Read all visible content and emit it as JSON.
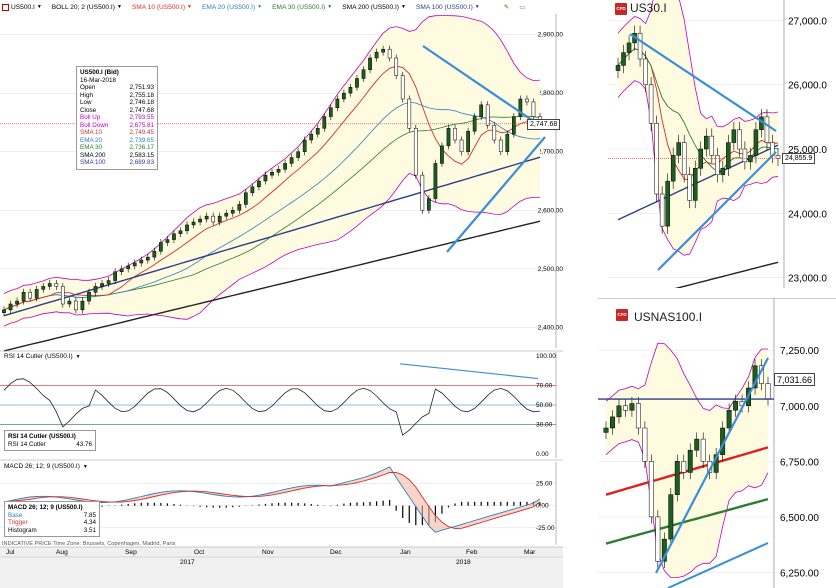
{
  "main": {
    "toolbar": {
      "symbol": "US500.I",
      "boll": "BOLL 20; 2 (US500.I)",
      "sma10": "SMA 10 (US500.I)",
      "ema20": "EMA 20 (US500.I)",
      "ema30": "EMA 30 (US500.I)",
      "sma200": "SMA 200 (US500.I)",
      "sma100": "SMA 100 (US500.I)"
    },
    "price_badge": "2,747.68",
    "infobox": {
      "title": "US500.I (Bid)",
      "date": "16-Mar-2018",
      "rows": [
        {
          "label": "Open",
          "value": "2,751.93",
          "color": "#000000"
        },
        {
          "label": "High",
          "value": "2,755.18",
          "color": "#000000"
        },
        {
          "label": "Low",
          "value": "2,746.18",
          "color": "#000000"
        },
        {
          "label": "Close",
          "value": "2,747.68",
          "color": "#000000"
        },
        {
          "label": "Boll Up",
          "value": "2,793.55",
          "color": "#c000c0"
        },
        {
          "label": "Boll Down",
          "value": "2,675.81",
          "color": "#c000c0"
        },
        {
          "label": "SMA 10",
          "value": "2,749.45",
          "color": "#d32f2f"
        },
        {
          "label": "EMA 20",
          "value": "2,739.65",
          "color": "#2e7fc1"
        },
        {
          "label": "EMA 30",
          "value": "2,736.17",
          "color": "#2e7d32"
        },
        {
          "label": "SMA 200",
          "value": "2,583.15",
          "color": "#000000"
        },
        {
          "label": "SMA 100",
          "value": "2,689.83",
          "color": "#2c3e8c"
        }
      ]
    },
    "yticks": [
      "2,900.00",
      "2,800.00",
      "2,700.00",
      "2,600.00",
      "2,500.00",
      "2,400.00"
    ]
  },
  "rsi": {
    "header": "RSI 14 Cutler (US500.I)",
    "box_title": "RSI 14 Cutler (US500.I)",
    "box_label": "RSI 14 Cutler",
    "box_value": "43.76",
    "yticks": [
      "100.00",
      "70.00",
      "50.00",
      "30.00",
      "0.00"
    ]
  },
  "macd": {
    "header": "MACD 26; 12; 9 (US500.I)",
    "box_title": "MACD 26; 12; 9 (US500.I)",
    "rows": [
      {
        "label": "Base",
        "value": "7.85",
        "color": "#2e7fc1"
      },
      {
        "label": "Trigger",
        "value": "4.34",
        "color": "#d32f2f"
      },
      {
        "label": "Histogram",
        "value": "3.51",
        "color": "#000000"
      }
    ],
    "yticks": [
      "25.00",
      "0.00",
      "-25.00"
    ]
  },
  "footer": {
    "indicative": "INDICATIVE PRICE   Time Zone: Brussels, Copenhagen, Madrid, Paris",
    "months": [
      "Jul",
      "Aug",
      "Sep",
      "Oct",
      "Nov",
      "Dec",
      "Jan",
      "Feb",
      "Mar"
    ],
    "years": [
      "2017",
      "2018"
    ]
  },
  "us30": {
    "title": "US30.I",
    "price_badge": "24,855.9",
    "yticks": [
      "27,000.0",
      "26,000.0",
      "25,000.0",
      "24,000.0",
      "23,000.0"
    ]
  },
  "usnas": {
    "title": "USNAS100.I",
    "price_badge": "7,031.66",
    "yticks": [
      "7,250.00",
      "7,000.00",
      "6,750.00",
      "6,500.00",
      "6,250.00"
    ]
  },
  "chart_data": [
    {
      "type": "candlestick",
      "title": "US500.I",
      "x_range": [
        "Jul 2017",
        "Mar 2018"
      ],
      "ylim": [
        2370,
        2930
      ],
      "last": {
        "open": 2751.93,
        "high": 2755.18,
        "low": 2746.18,
        "close": 2747.68
      },
      "close_series": [
        2430,
        2440,
        2445,
        2460,
        2450,
        2465,
        2470,
        2475,
        2470,
        2440,
        2445,
        2430,
        2445,
        2460,
        2470,
        2475,
        2480,
        2495,
        2500,
        2505,
        2510,
        2515,
        2520,
        2530,
        2545,
        2550,
        2560,
        2565,
        2575,
        2580,
        2585,
        2590,
        2580,
        2590,
        2595,
        2600,
        2610,
        2630,
        2640,
        2650,
        2660,
        2665,
        2670,
        2680,
        2690,
        2700,
        2720,
        2730,
        2740,
        2760,
        2775,
        2790,
        2800,
        2810,
        2825,
        2840,
        2860,
        2870,
        2875,
        2860,
        2830,
        2790,
        2740,
        2660,
        2600,
        2620,
        2680,
        2710,
        2740,
        2720,
        2700,
        2735,
        2760,
        2780,
        2745,
        2720,
        2700,
        2730,
        2760,
        2790,
        2785,
        2760,
        2748
      ],
      "series": [
        {
          "name": "SMA 10",
          "last": 2749.45
        },
        {
          "name": "EMA 20",
          "last": 2739.65
        },
        {
          "name": "EMA 30",
          "last": 2736.17
        },
        {
          "name": "SMA 100",
          "last": 2689.83
        },
        {
          "name": "SMA 200",
          "last": 2583.15
        },
        {
          "name": "Boll Up",
          "last": 2793.55
        },
        {
          "name": "Boll Down",
          "last": 2675.81
        }
      ]
    },
    {
      "type": "line",
      "title": "RSI 14 Cutler (US500.I)",
      "ylim": [
        0,
        100
      ],
      "levels": [
        70,
        50,
        30
      ],
      "last": 43.76
    },
    {
      "type": "bar",
      "title": "MACD 26; 12; 9 (US500.I)",
      "ylim": [
        -40,
        45
      ],
      "last": {
        "base": 7.85,
        "trigger": 4.34,
        "histogram": 3.51
      }
    },
    {
      "type": "candlestick",
      "title": "US30.I",
      "ylim": [
        22900,
        27100
      ],
      "last": 24855.9
    },
    {
      "type": "candlestick",
      "title": "USNAS100.I",
      "ylim": [
        6180,
        7260
      ],
      "last": 7031.66
    }
  ]
}
